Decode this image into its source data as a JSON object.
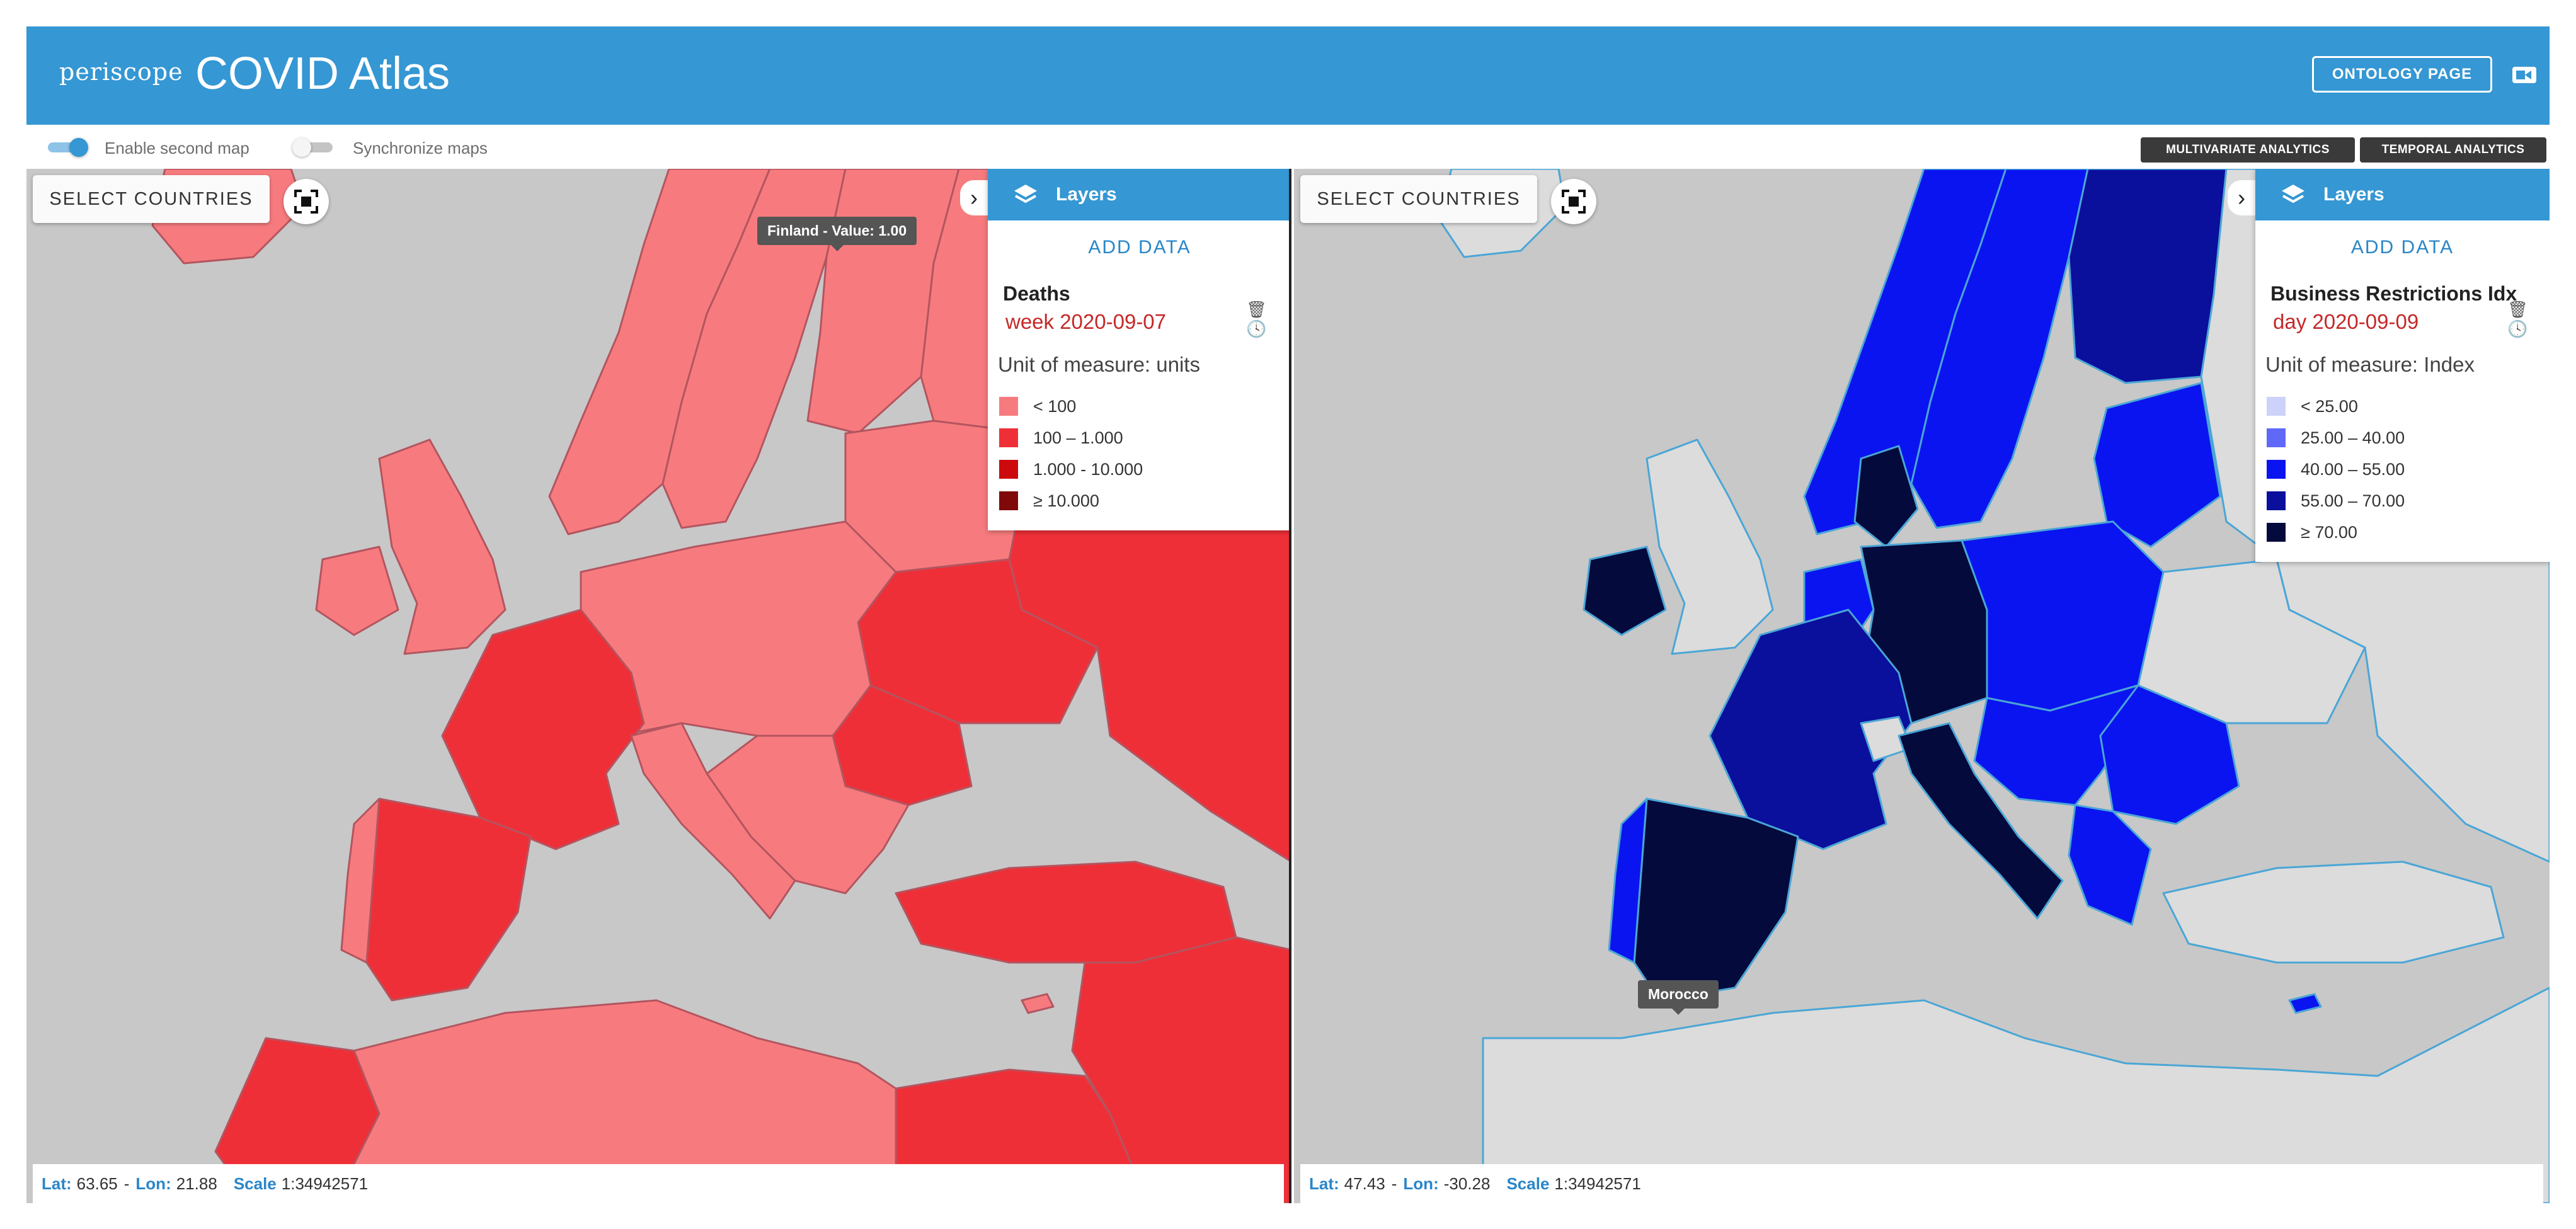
{
  "header": {
    "logo": "periscope",
    "title": "COVID Atlas",
    "ontology_button": "ONTOLOGY PAGE",
    "camera_icon": "video-camera-icon"
  },
  "toolbar": {
    "enable_second_map": {
      "label": "Enable second map",
      "on": true
    },
    "synchronize_maps": {
      "label": "Synchronize maps",
      "on": false
    },
    "multivariate_button": "MULTIVARIATE ANALYTICS",
    "temporal_button": "TEMPORAL ANALYTICS"
  },
  "maps": [
    {
      "select_countries": "SELECT COUNTRIES",
      "layers_title": "Layers",
      "add_data": "ADD DATA",
      "layer_name": "Deaths",
      "layer_date": "week 2020-09-07",
      "unit": "Unit of measure: units",
      "legend": [
        {
          "label": "< 100",
          "color": "#f77b7e"
        },
        {
          "label": "100 – 1.000",
          "color": "#ef2f37"
        },
        {
          "label": "1.000 - 10.000",
          "color": "#cc0a0d"
        },
        {
          "label": "≥ 10.000",
          "color": "#800a0a"
        }
      ],
      "tooltip": "Finland - Value: 1.00",
      "lat": "63.65",
      "lon": "21.88",
      "scale": "1:34942571"
    },
    {
      "select_countries": "SELECT COUNTRIES",
      "layers_title": "Layers",
      "add_data": "ADD DATA",
      "layer_name": "Business Restrictions Idx",
      "layer_date": "day 2020-09-09",
      "unit": "Unit of measure: Index",
      "legend": [
        {
          "label": "< 25.00",
          "color": "#cdd2fb"
        },
        {
          "label": "25.00 – 40.00",
          "color": "#6068f8"
        },
        {
          "label": "40.00 – 55.00",
          "color": "#0a14f0"
        },
        {
          "label": "55.00 – 70.00",
          "color": "#0a0f9c"
        },
        {
          "label": "≥ 70.00",
          "color": "#050a3c"
        }
      ],
      "tooltip": "Morocco",
      "lat": "47.43",
      "lon": "-30.28",
      "scale": "1:34942571"
    }
  ],
  "status_labels": {
    "lat": "Lat:",
    "lon": "Lon:",
    "scale": "Scale"
  },
  "colors": {
    "brand": "#3597d3",
    "sea": "#c8c8c8",
    "no_data_land": "#dcdcdc",
    "border_left": "#b35560",
    "border_right": "#4aa6d6"
  }
}
